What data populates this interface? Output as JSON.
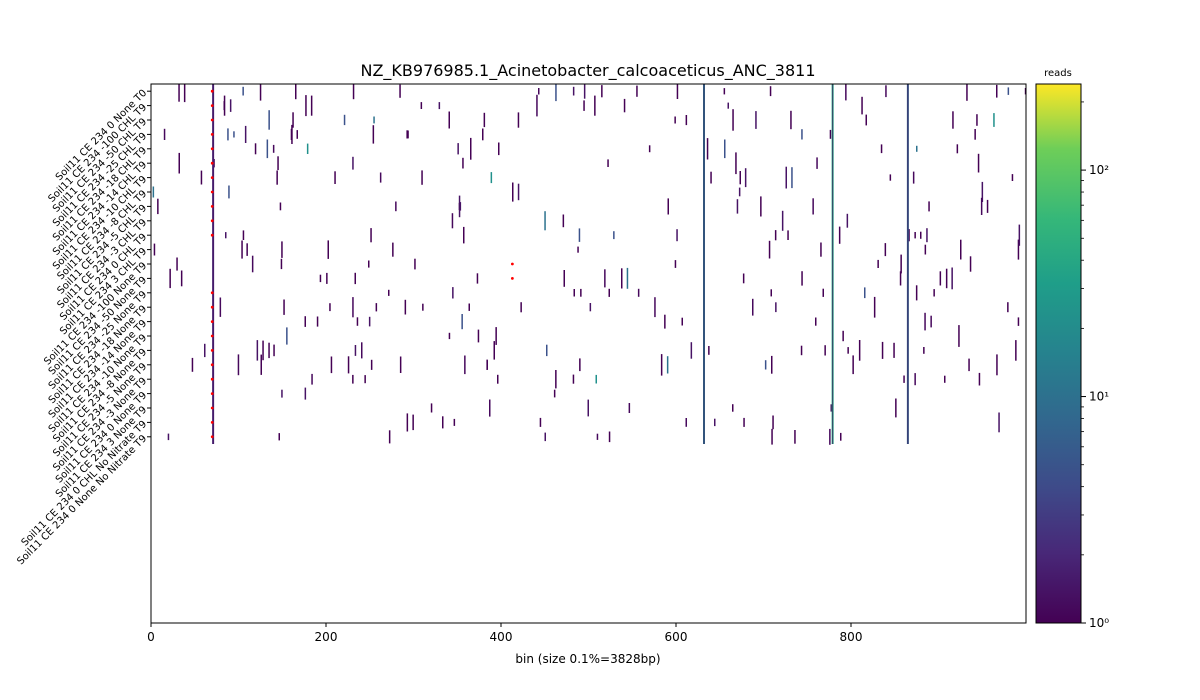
{
  "chart_data": {
    "type": "heatmap",
    "title": "NZ_KB976985.1_Acinetobacter_calcoaceticus_ANC_3811",
    "xlabel": "bin (size 0.1%=3828bp)",
    "xlim": [
      0,
      1000
    ],
    "xticks": [
      "0",
      "200",
      "400",
      "600",
      "800"
    ],
    "rows": [
      "Soil11 CE 234 0 None T0",
      "Soil11 CE 234 -100 CHL T9",
      "Soil11 CE 234 -50 CHL T9",
      "Soil11 CE 234 -25 CHL T9",
      "Soil11 CE 234 -18 CHL T9",
      "Soil11 CE 234 -14 CHL T9",
      "Soil11 CE 234 -10 CHL T9",
      "Soil11 CE 234 -8 CHL T9",
      "Soil11 CE 234 -5 CHL T9",
      "Soil11 CE 234 -3 CHL T9",
      "Soil11 CE 234 0 CHL T9",
      "Soil11 CE 234 3 CHL T9",
      "Soil11 CE 234 -100 None T9",
      "Soil11 CE 234 -50 None T9",
      "Soil11 CE 234 -25 None T9",
      "Soil11 CE 234 -18 None T9",
      "Soil11 CE 234 -14 None T9",
      "Soil11 CE 234 -10 None T9",
      "Soil11 CE 234 -8 None T9",
      "Soil11 CE 234 -5 None T9",
      "Soil11 CE 234 -3 None T9",
      "Soil11 CE 234 0 None T9",
      "Soil11 CE 234 3 None T9",
      "Soil11 CE 234 0 CHL No Nitrate T9",
      "Soil11 CE 234 0 None No Nitrate T9"
    ],
    "colorbar": {
      "label": "reads",
      "scale": "log",
      "range": [
        1,
        240
      ],
      "ticks": [
        "10⁰",
        "10¹",
        "10²"
      ],
      "colormap": [
        "#440154",
        "#3b528b",
        "#21918c",
        "#5ec962",
        "#fde725"
      ]
    },
    "strong_columns": [
      {
        "bin": 71,
        "reads": 3,
        "color": "#482878"
      },
      {
        "bin": 632,
        "reads": 8,
        "color": "#2a788e"
      },
      {
        "bin": 779,
        "reads": 12,
        "color": "#22a884"
      },
      {
        "bin": 865,
        "reads": 4,
        "color": "#31688e"
      }
    ],
    "markers": [
      {
        "bin": 70,
        "row": 0
      },
      {
        "bin": 70,
        "row": 1
      },
      {
        "bin": 70,
        "row": 2
      },
      {
        "bin": 70,
        "row": 3
      },
      {
        "bin": 70,
        "row": 4
      },
      {
        "bin": 70,
        "row": 5
      },
      {
        "bin": 70,
        "row": 6
      },
      {
        "bin": 70,
        "row": 7
      },
      {
        "bin": 70,
        "row": 8
      },
      {
        "bin": 70,
        "row": 9
      },
      {
        "bin": 70,
        "row": 10
      },
      {
        "bin": 413,
        "row": 12
      },
      {
        "bin": 413,
        "row": 13
      },
      {
        "bin": 70,
        "row": 14
      },
      {
        "bin": 70,
        "row": 15
      },
      {
        "bin": 70,
        "row": 16
      },
      {
        "bin": 70,
        "row": 17
      },
      {
        "bin": 70,
        "row": 18
      },
      {
        "bin": 70,
        "row": 19
      },
      {
        "bin": 70,
        "row": 20
      },
      {
        "bin": 70,
        "row": 21
      },
      {
        "bin": 70,
        "row": 22
      },
      {
        "bin": 70,
        "row": 23
      },
      {
        "bin": 70,
        "row": 24
      }
    ],
    "marker_color": "#ff0000"
  }
}
